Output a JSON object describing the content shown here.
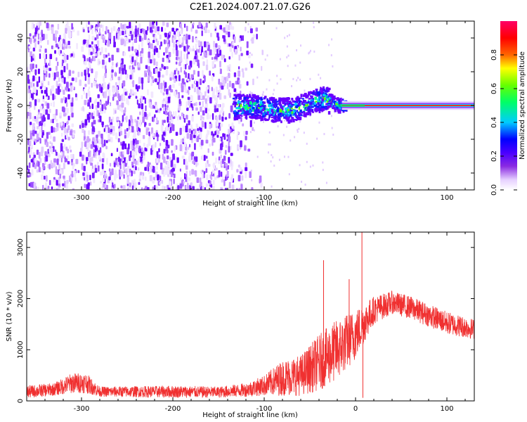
{
  "title": "C2E1.2024.007.21.07.G26",
  "chart_data": [
    {
      "type": "heatmap",
      "name": "spectrogram",
      "xlabel": "Height of straight line (km)",
      "ylabel": "Frequency (Hz)",
      "xlim": [
        -360,
        130
      ],
      "ylim": [
        -50,
        50
      ],
      "xticks": [
        -300,
        -200,
        -100,
        0,
        100
      ],
      "yticks": [
        -40,
        -20,
        0,
        20,
        40
      ],
      "colorbar": {
        "label": "Normalized spectral amplitude",
        "range": [
          0,
          1
        ],
        "ticks": [
          "0.0",
          "0.2",
          "0.4",
          "0.6",
          "0.8"
        ],
        "colors": [
          "#ffffff",
          "#e6d0ff",
          "#8a2be2",
          "#4b00ff",
          "#0000ff",
          "#00ccff",
          "#00ff66",
          "#66ff00",
          "#ffff00",
          "#ff6600",
          "#ff0000",
          "#ff0066"
        ]
      },
      "features": {
        "noise_region_x": [
          -360,
          -120
        ],
        "signal_trace": [
          {
            "x": -130,
            "f": 0
          },
          {
            "x": -110,
            "f": 0
          },
          {
            "x": -90,
            "f": -2
          },
          {
            "x": -70,
            "f": -2
          },
          {
            "x": -50,
            "f": 2
          },
          {
            "x": -35,
            "f": 5
          },
          {
            "x": -20,
            "f": 1
          },
          {
            "x": 0,
            "f": 0
          },
          {
            "x": 130,
            "f": 0
          }
        ],
        "strong_tone_x": [
          -15,
          130
        ]
      }
    },
    {
      "type": "line",
      "name": "snr",
      "xlabel": "Height of straight line (km)",
      "ylabel": "SNR (10 * v/v)",
      "xlim": [
        -360,
        130
      ],
      "ylim": [
        0,
        3300
      ],
      "xticks": [
        -300,
        -200,
        -100,
        0,
        100
      ],
      "yticks": [
        0,
        1000,
        2000,
        3000
      ],
      "color": "#f03030",
      "envelope": [
        {
          "x": -360,
          "lo": 50,
          "hi": 300
        },
        {
          "x": -330,
          "lo": 100,
          "hi": 350
        },
        {
          "x": -310,
          "lo": 150,
          "hi": 550
        },
        {
          "x": -295,
          "lo": 150,
          "hi": 550
        },
        {
          "x": -280,
          "lo": 80,
          "hi": 280
        },
        {
          "x": -200,
          "lo": 60,
          "hi": 300
        },
        {
          "x": -150,
          "lo": 60,
          "hi": 280
        },
        {
          "x": -120,
          "lo": 80,
          "hi": 350
        },
        {
          "x": -100,
          "lo": 100,
          "hi": 500
        },
        {
          "x": -80,
          "lo": 100,
          "hi": 800
        },
        {
          "x": -60,
          "lo": 100,
          "hi": 900
        },
        {
          "x": -40,
          "lo": 200,
          "hi": 1300
        },
        {
          "x": -20,
          "lo": 400,
          "hi": 1600
        },
        {
          "x": 0,
          "lo": 800,
          "hi": 1800
        },
        {
          "x": 20,
          "lo": 1500,
          "hi": 2050
        },
        {
          "x": 40,
          "lo": 1700,
          "hi": 2150
        },
        {
          "x": 60,
          "lo": 1600,
          "hi": 2050
        },
        {
          "x": 80,
          "lo": 1450,
          "hi": 1900
        },
        {
          "x": 100,
          "lo": 1300,
          "hi": 1750
        },
        {
          "x": 130,
          "lo": 1200,
          "hi": 1600
        }
      ],
      "spikes": [
        {
          "x": -35,
          "y": 2750
        },
        {
          "x": -7,
          "y": 2380
        },
        {
          "x": 7,
          "y": 3300
        },
        {
          "x": 8,
          "y": 60
        }
      ]
    }
  ]
}
